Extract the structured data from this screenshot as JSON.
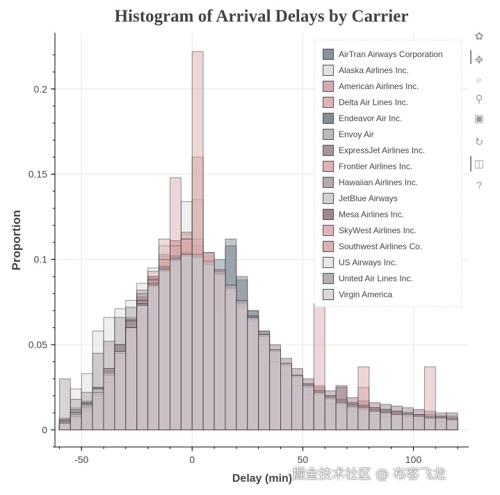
{
  "chart_data": {
    "type": "bar",
    "title": "Histogram of Arrival Delays by Carrier",
    "xlabel": "Delay (min)",
    "ylabel": "Proportion",
    "xlim": [
      -62,
      125
    ],
    "ylim": [
      -0.01,
      0.233
    ],
    "xticks": [
      -50,
      0,
      50,
      100
    ],
    "xtick_labels": [
      "-50",
      "0",
      "50",
      "100"
    ],
    "yticks": [
      0,
      0.05,
      0.1,
      0.15,
      0.2
    ],
    "ytick_labels": [
      "0",
      "0.05",
      "0.1",
      "0.15",
      "0.2"
    ],
    "grid": true,
    "legend_placement": "top-right",
    "bin_start": -60,
    "bin_width": 5,
    "bins_count": 36,
    "series": [
      {
        "name": "AirTran Airways Corporation",
        "color": "#708090",
        "values": [
          0.003,
          0.013,
          0.009,
          0.018,
          0.026,
          0.035,
          0.05,
          0.063,
          0.078,
          0.088,
          0.094,
          0.093,
          0.095,
          0.089,
          0.092,
          0.112,
          0.088,
          0.07,
          0.058,
          0.045,
          0.034,
          0.026,
          0.02,
          0.018,
          0.015,
          0.013,
          0.011,
          0.011,
          0.009,
          0.008,
          0.007,
          0.007,
          0.006,
          0.005,
          0.005,
          0.004
        ]
      },
      {
        "name": "Alaska Airlines Inc.",
        "color": "#dcdcdc",
        "values": [
          0.004,
          0.024,
          0.033,
          0.058,
          0.066,
          0.071,
          0.076,
          0.086,
          0.095,
          0.108,
          0.11,
          0.134,
          0.135,
          0.094,
          0.085,
          0.074,
          0.066,
          0.056,
          0.04,
          0.035,
          0.025,
          0.02,
          0.015,
          0.012,
          0.01,
          0.009,
          0.008,
          0.007,
          0.006,
          0.005,
          0.005,
          0.004,
          0.004,
          0.003,
          0.003,
          0.003
        ]
      },
      {
        "name": "American Airlines Inc.",
        "color": "#c79fa0",
        "values": [
          0.004,
          0.008,
          0.012,
          0.02,
          0.032,
          0.05,
          0.066,
          0.08,
          0.09,
          0.102,
          0.111,
          0.115,
          0.108,
          0.102,
          0.093,
          0.082,
          0.07,
          0.058,
          0.048,
          0.038,
          0.03,
          0.024,
          0.019,
          0.016,
          0.013,
          0.011,
          0.01,
          0.009,
          0.008,
          0.007,
          0.006,
          0.006,
          0.005,
          0.005,
          0.004,
          0.004
        ]
      },
      {
        "name": "Delta Air Lines Inc.",
        "color": "#d9a8a8",
        "values": [
          0.003,
          0.006,
          0.01,
          0.018,
          0.03,
          0.048,
          0.065,
          0.08,
          0.093,
          0.103,
          0.111,
          0.116,
          0.112,
          0.104,
          0.094,
          0.082,
          0.069,
          0.058,
          0.046,
          0.036,
          0.028,
          0.022,
          0.017,
          0.014,
          0.012,
          0.01,
          0.009,
          0.008,
          0.007,
          0.006,
          0.006,
          0.005,
          0.005,
          0.004,
          0.004,
          0.004
        ]
      },
      {
        "name": "Endeavor Air Inc.",
        "color": "#6e7b85",
        "values": [
          0.006,
          0.012,
          0.017,
          0.025,
          0.035,
          0.05,
          0.065,
          0.078,
          0.089,
          0.096,
          0.098,
          0.096,
          0.099,
          0.095,
          0.1,
          0.108,
          0.09,
          0.07,
          0.055,
          0.042,
          0.032,
          0.025,
          0.02,
          0.017,
          0.014,
          0.012,
          0.01,
          0.009,
          0.008,
          0.007,
          0.006,
          0.006,
          0.005,
          0.005,
          0.004,
          0.004
        ]
      },
      {
        "name": "Envoy Air",
        "color": "#b5aeae",
        "values": [
          0.005,
          0.01,
          0.015,
          0.022,
          0.034,
          0.048,
          0.062,
          0.076,
          0.088,
          0.096,
          0.1,
          0.1,
          0.098,
          0.094,
          0.088,
          0.08,
          0.07,
          0.06,
          0.049,
          0.04,
          0.032,
          0.026,
          0.021,
          0.018,
          0.015,
          0.013,
          0.011,
          0.01,
          0.009,
          0.008,
          0.007,
          0.007,
          0.006,
          0.006,
          0.005,
          0.005
        ]
      },
      {
        "name": "ExpressJet Airlines Inc.",
        "color": "#9a7f8c",
        "values": [
          0.007,
          0.012,
          0.016,
          0.022,
          0.03,
          0.042,
          0.056,
          0.07,
          0.082,
          0.092,
          0.098,
          0.1,
          0.1,
          0.097,
          0.092,
          0.085,
          0.076,
          0.066,
          0.056,
          0.047,
          0.039,
          0.032,
          0.027,
          0.023,
          0.02,
          0.025,
          0.016,
          0.015,
          0.013,
          0.012,
          0.011,
          0.01,
          0.009,
          0.008,
          0.008,
          0.007
        ]
      },
      {
        "name": "Frontier Airlines Inc.",
        "color": "#dba6a6",
        "values": [
          0.003,
          0.006,
          0.01,
          0.018,
          0.028,
          0.042,
          0.06,
          0.076,
          0.09,
          0.112,
          0.148,
          0.112,
          0.16,
          0.104,
          0.09,
          0.075,
          0.06,
          0.055,
          0.055,
          0.04,
          0.035,
          0.025,
          0.02,
          0.025,
          0.015,
          0.015,
          0.01,
          0.025,
          0.01,
          0.005,
          0.01,
          0.005,
          0.005,
          0.005,
          0.003,
          0.003
        ]
      },
      {
        "name": "Hawaiian Airlines Inc.",
        "color": "#a89ca4",
        "values": [
          0.03,
          0.018,
          0.022,
          0.045,
          0.052,
          0.066,
          0.072,
          0.082,
          0.088,
          0.096,
          0.102,
          0.098,
          0.094,
          0.088,
          0.082,
          0.075,
          0.066,
          0.058,
          0.05,
          0.042,
          0.035,
          0.03,
          0.025,
          0.022,
          0.019,
          0.017,
          0.015,
          0.014,
          0.013,
          0.012,
          0.011,
          0.01,
          0.009,
          0.008,
          0.008,
          0.007
        ]
      },
      {
        "name": "JetBlue Airways",
        "color": "#c8c8c8",
        "values": [
          0.005,
          0.01,
          0.015,
          0.024,
          0.036,
          0.05,
          0.064,
          0.076,
          0.086,
          0.094,
          0.098,
          0.1,
          0.098,
          0.094,
          0.088,
          0.081,
          0.072,
          0.063,
          0.054,
          0.045,
          0.037,
          0.031,
          0.026,
          0.022,
          0.019,
          0.016,
          0.014,
          0.013,
          0.012,
          0.011,
          0.01,
          0.009,
          0.008,
          0.008,
          0.007,
          0.007
        ]
      },
      {
        "name": "Mesa Airlines Inc.",
        "color": "#8f7080",
        "values": [
          0.006,
          0.01,
          0.016,
          0.025,
          0.036,
          0.05,
          0.064,
          0.076,
          0.086,
          0.093,
          0.097,
          0.098,
          0.097,
          0.093,
          0.088,
          0.082,
          0.075,
          0.067,
          0.058,
          0.05,
          0.042,
          0.036,
          0.03,
          0.026,
          0.023,
          0.026,
          0.019,
          0.017,
          0.016,
          0.015,
          0.014,
          0.013,
          0.012,
          0.011,
          0.01,
          0.01
        ]
      },
      {
        "name": "SkyWest Airlines Inc.",
        "color": "#d8a8ac",
        "values": [
          0.004,
          0.008,
          0.012,
          0.02,
          0.032,
          0.046,
          0.06,
          0.074,
          0.086,
          0.096,
          0.102,
          0.104,
          0.102,
          0.097,
          0.09,
          0.082,
          0.073,
          0.064,
          0.055,
          0.046,
          0.038,
          0.032,
          0.027,
          0.023,
          0.02,
          0.018,
          0.016,
          0.014,
          0.013,
          0.012,
          0.011,
          0.01,
          0.009,
          0.009,
          0.008,
          0.008
        ]
      },
      {
        "name": "Southwest Airlines Co.",
        "color": "#d4a4a4",
        "values": [
          0.004,
          0.007,
          0.011,
          0.018,
          0.028,
          0.042,
          0.058,
          0.074,
          0.088,
          0.1,
          0.108,
          0.112,
          0.222,
          0.104,
          0.094,
          0.083,
          0.072,
          0.061,
          0.05,
          0.04,
          0.032,
          0.026,
          0.021,
          0.074,
          0.015,
          0.013,
          0.011,
          0.037,
          0.009,
          0.008,
          0.007,
          0.007,
          0.006,
          0.037,
          0.005,
          0.005
        ]
      },
      {
        "name": "US Airways Inc.",
        "color": "#e4e4e4",
        "values": [
          0.005,
          0.01,
          0.015,
          0.024,
          0.034,
          0.046,
          0.06,
          0.073,
          0.084,
          0.093,
          0.099,
          0.102,
          0.101,
          0.097,
          0.091,
          0.083,
          0.074,
          0.065,
          0.055,
          0.046,
          0.038,
          0.031,
          0.025,
          0.021,
          0.018,
          0.015,
          0.013,
          0.012,
          0.011,
          0.01,
          0.009,
          0.008,
          0.008,
          0.007,
          0.007,
          0.006
        ]
      },
      {
        "name": "United Air Lines Inc.",
        "color": "#a9a2a6",
        "values": [
          0.004,
          0.008,
          0.013,
          0.021,
          0.032,
          0.045,
          0.06,
          0.074,
          0.086,
          0.095,
          0.101,
          0.103,
          0.102,
          0.098,
          0.092,
          0.084,
          0.075,
          0.066,
          0.056,
          0.047,
          0.039,
          0.032,
          0.027,
          0.023,
          0.02,
          0.017,
          0.015,
          0.014,
          0.012,
          0.011,
          0.01,
          0.01,
          0.009,
          0.008,
          0.008,
          0.007
        ]
      },
      {
        "name": "Virgin America",
        "color": "#d6d0d6",
        "values": [
          0.004,
          0.009,
          0.014,
          0.022,
          0.033,
          0.046,
          0.06,
          0.073,
          0.085,
          0.094,
          0.1,
          0.103,
          0.103,
          0.099,
          0.093,
          0.085,
          0.076,
          0.066,
          0.056,
          0.047,
          0.039,
          0.032,
          0.026,
          0.022,
          0.019,
          0.016,
          0.014,
          0.013,
          0.011,
          0.01,
          0.009,
          0.009,
          0.008,
          0.007,
          0.007,
          0.006
        ]
      }
    ]
  },
  "toolbar": {
    "tools": [
      {
        "name": "bokeh-logo-icon",
        "glyph": "✿"
      },
      {
        "name": "pan-icon",
        "glyph": "✥"
      },
      {
        "name": "box-zoom-icon",
        "glyph": "⌕"
      },
      {
        "name": "wheel-zoom-icon",
        "glyph": "⚲"
      },
      {
        "name": "save-icon",
        "glyph": "▣"
      },
      {
        "name": "reset-icon",
        "glyph": "↻"
      },
      {
        "name": "hover-icon",
        "glyph": "◫"
      },
      {
        "name": "help-icon",
        "glyph": "?"
      }
    ]
  },
  "watermark": "掘金技术社区 @ 布客飞龙"
}
